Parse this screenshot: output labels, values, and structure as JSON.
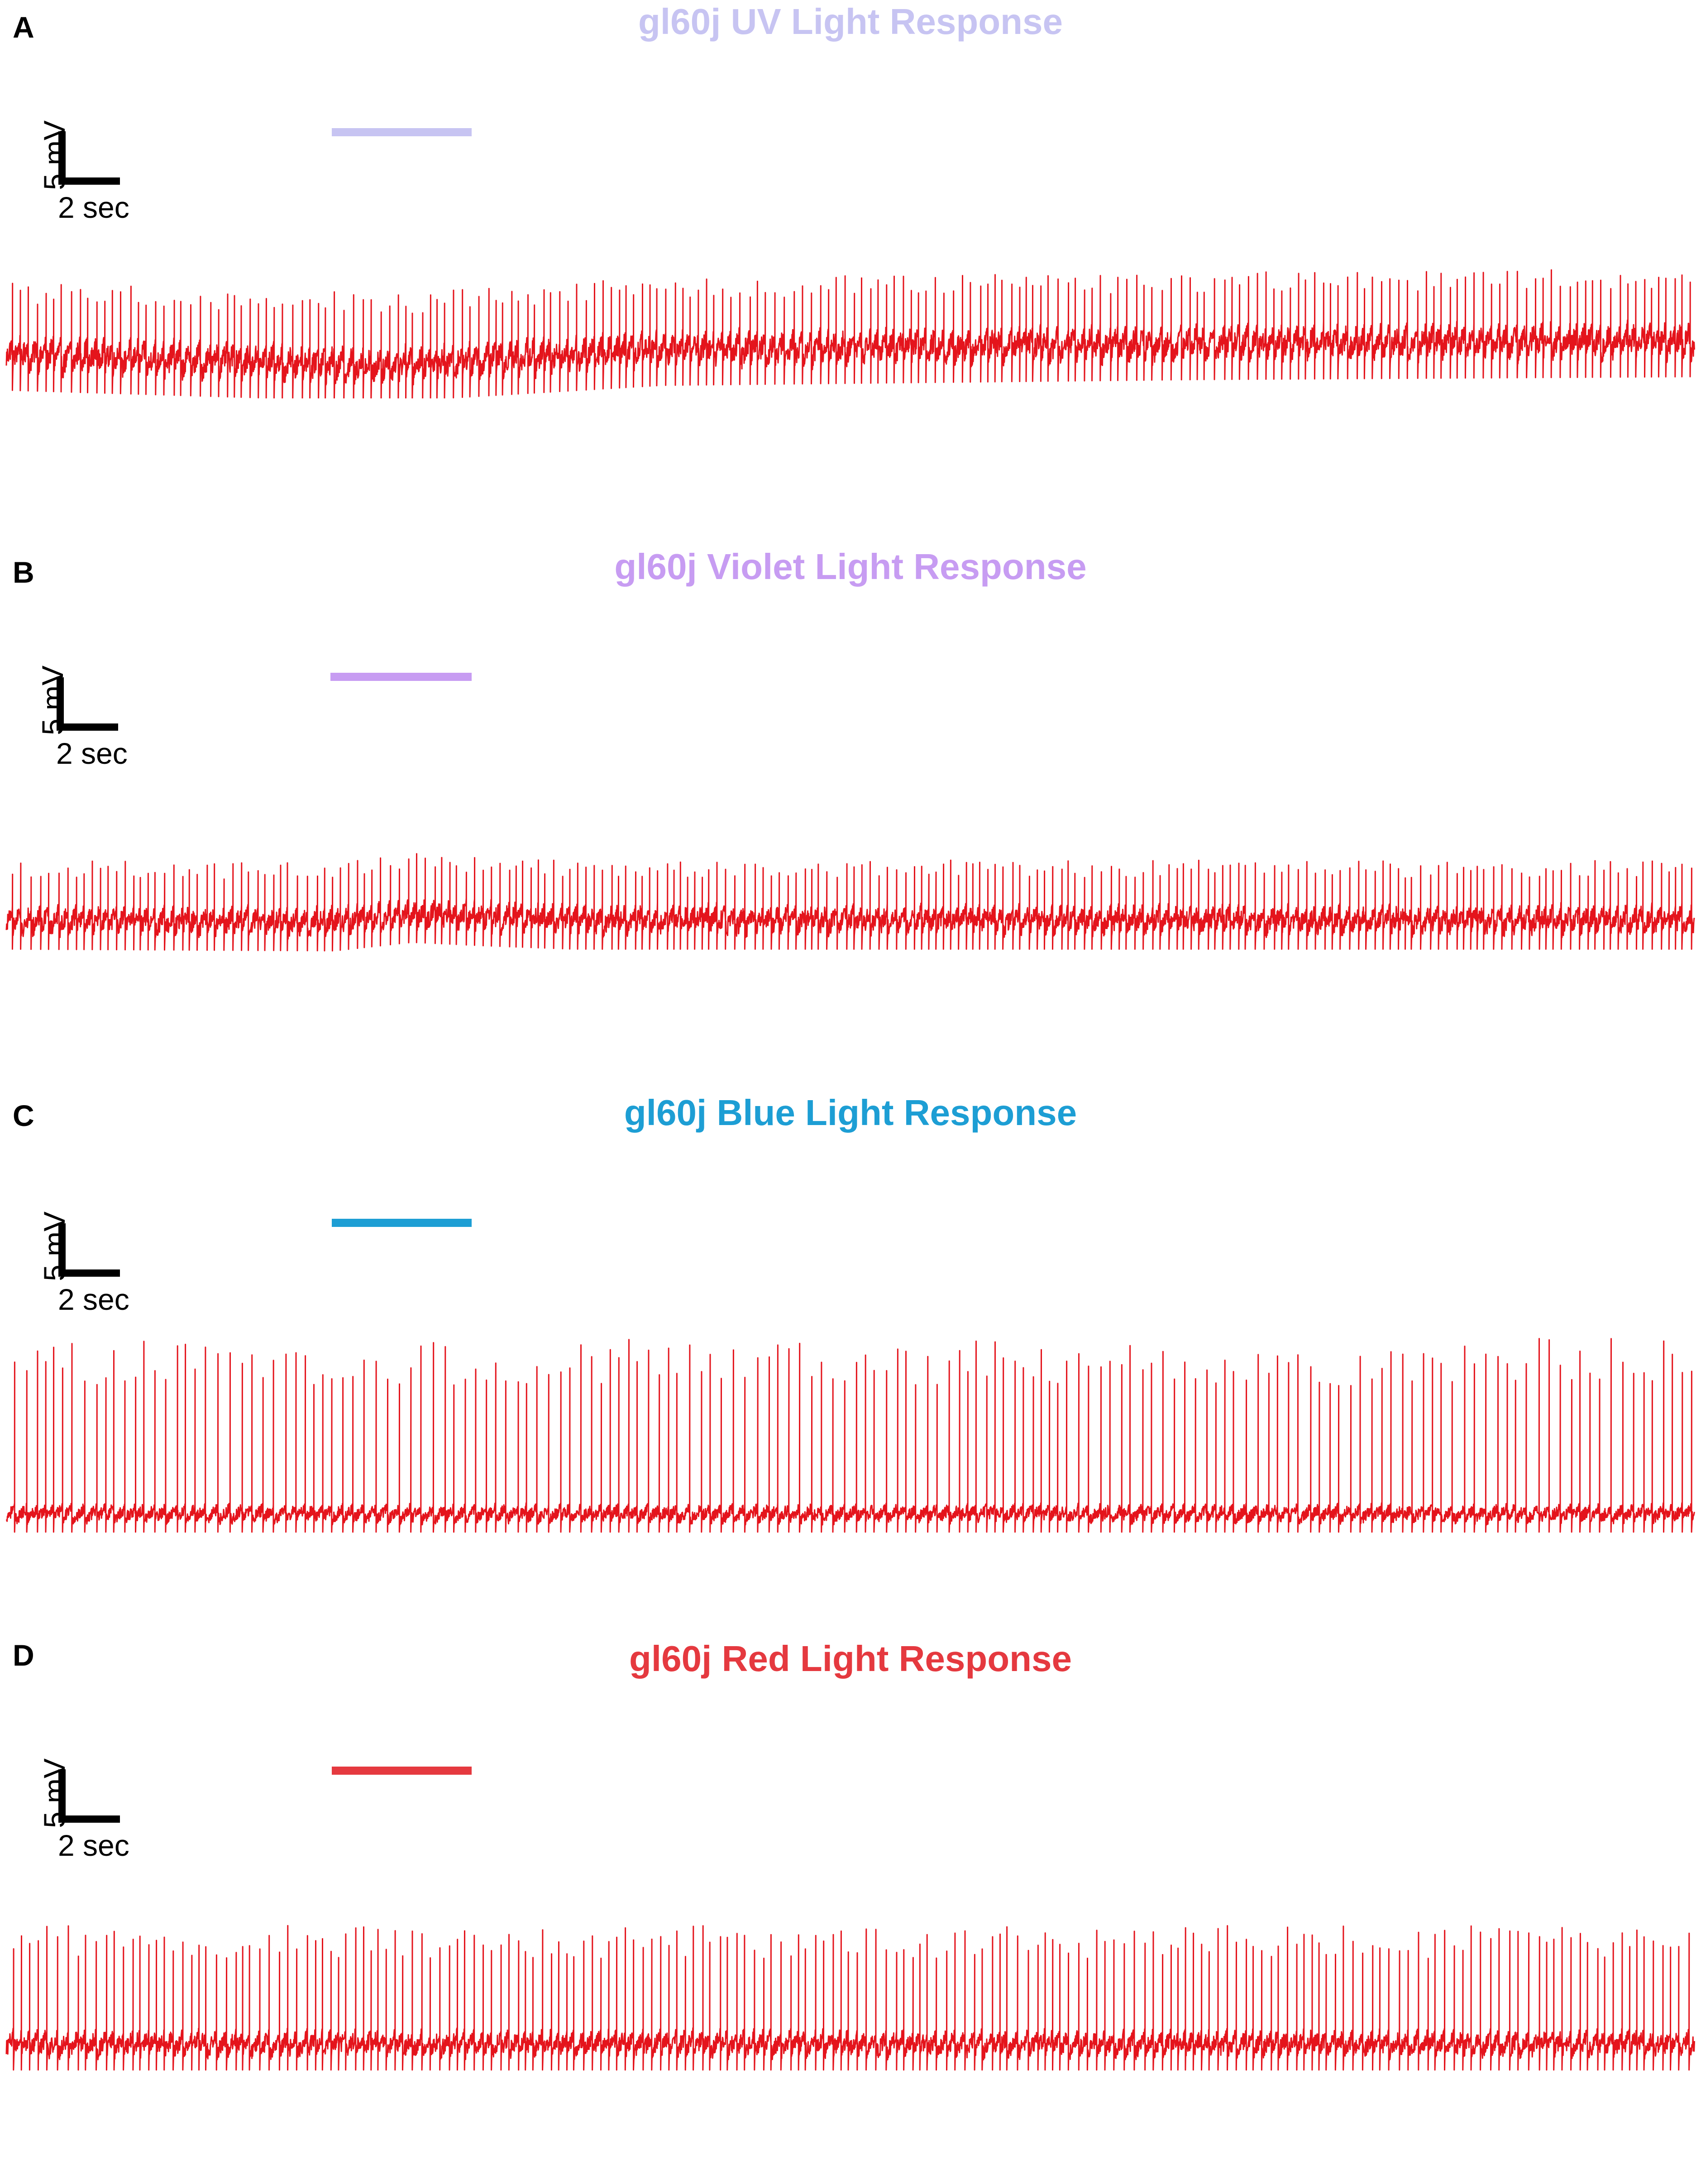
{
  "colors": {
    "trace": "#e4141c",
    "scale": "#000000"
  },
  "scale_bar": {
    "voltage_label": "5 mV",
    "time_label": "2 sec"
  },
  "chart_data": [
    {
      "type": "line",
      "panel": "A",
      "title": "gl60j UV Light Response",
      "title_color": "#c7c4f2",
      "stimulus_color": "#c7c4f2",
      "stimulus_interval_s": [
        5.4,
        7.8
      ],
      "duration_s": 28.3,
      "spike_rate_hz": 7.2,
      "baseline_mv": -6,
      "spike_amplitude_mv": 7.5,
      "noise_mv": 1.2,
      "drift_mv": [
        [
          0,
          -0.5
        ],
        [
          6.4,
          -1.7
        ],
        [
          11,
          0
        ],
        [
          20,
          0.6
        ],
        [
          28.3,
          0.9
        ]
      ],
      "x_range": [
        0,
        28.3
      ],
      "y_range": [
        -10,
        6
      ]
    },
    {
      "type": "line",
      "panel": "B",
      "title": "gl60j Violet Light Response",
      "title_color": "#c79cf2",
      "stimulus_color": "#c79cf2",
      "stimulus_interval_s": [
        5.4,
        7.8
      ],
      "duration_s": 28.3,
      "spike_rate_hz": 7.4,
      "baseline_mv": -6,
      "spike_amplitude_mv": 7,
      "noise_mv": 1.1,
      "drift_mv": [
        [
          0,
          0
        ],
        [
          5.5,
          -0.2
        ],
        [
          6.8,
          0.8
        ],
        [
          8,
          0.4
        ],
        [
          9.5,
          0
        ],
        [
          28.3,
          0
        ]
      ],
      "x_range": [
        0,
        28.3
      ],
      "y_range": [
        -10,
        6
      ]
    },
    {
      "type": "line",
      "panel": "C",
      "title": "gl60j Blue Light Response",
      "title_color": "#1d9ed4",
      "stimulus_color": "#1d9ed4",
      "stimulus_interval_s": [
        5.4,
        7.8
      ],
      "duration_s": 28.3,
      "spike_rate_hz": 5.8,
      "baseline_mv": -10,
      "spike_amplitude_mv": 16,
      "noise_mv": 0.6,
      "drift_mv": [
        [
          0,
          0
        ],
        [
          28.3,
          0
        ]
      ],
      "x_range": [
        0,
        28.3
      ],
      "y_range": [
        -14,
        10
      ]
    },
    {
      "type": "line",
      "panel": "D",
      "title": "gl60j Red Light Response",
      "title_color": "#e5393f",
      "stimulus_color": "#e5393f",
      "stimulus_interval_s": [
        5.4,
        7.8
      ],
      "duration_s": 28.3,
      "spike_rate_hz": 7.0,
      "baseline_mv": -9,
      "spike_amplitude_mv": 13,
      "noise_mv": 1.0,
      "drift_mv": [
        [
          0,
          0
        ],
        [
          28.3,
          0
        ]
      ],
      "x_range": [
        0,
        28.3
      ],
      "y_range": [
        -14,
        10
      ]
    }
  ]
}
